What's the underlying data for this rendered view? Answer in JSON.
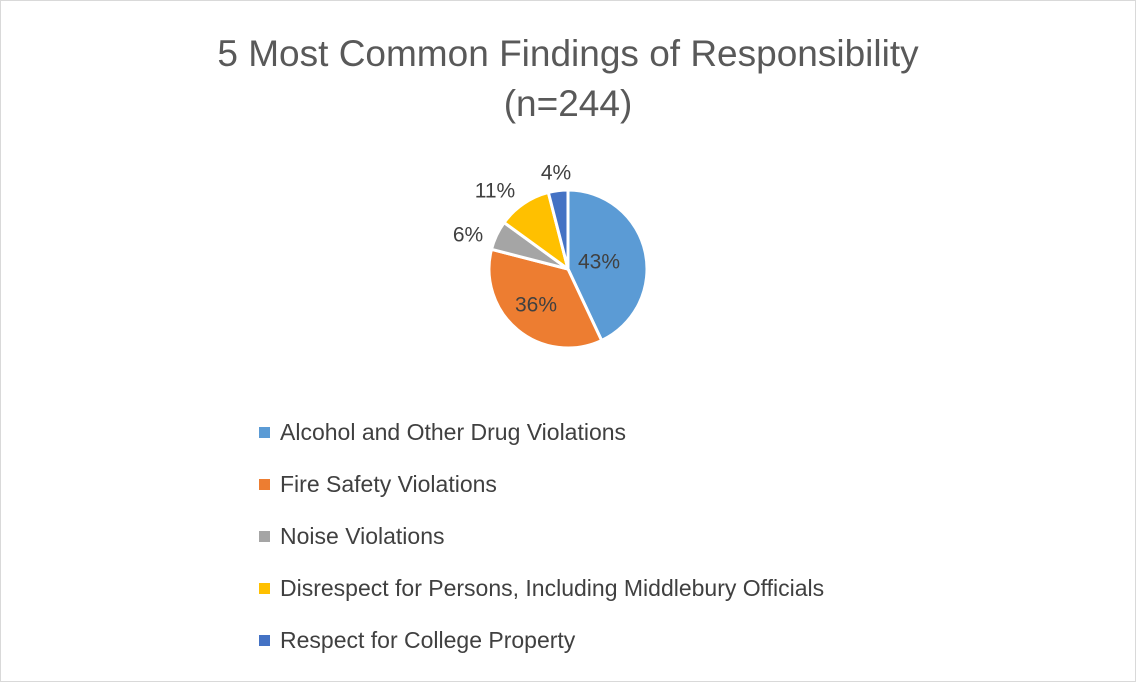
{
  "chart_data": {
    "type": "pie",
    "title_line1": "5 Most Common Findings of Responsibility",
    "title_line2": "(n=244)",
    "slices": [
      {
        "label": "Alcohol and Other Drug Violations",
        "value": 43,
        "data_label": "43%",
        "color": "#5B9BD5"
      },
      {
        "label": "Fire Safety Violations",
        "value": 36,
        "data_label": "36%",
        "color": "#ED7D31"
      },
      {
        "label": "Noise Violations",
        "value": 6,
        "data_label": "6%",
        "color": "#A5A5A5"
      },
      {
        "label": "Disrespect for Persons, Including Middlebury Officials",
        "value": 11,
        "data_label": "11%",
        "color": "#FFC000"
      },
      {
        "label": "Respect for College Property",
        "value": 4,
        "data_label": "4%",
        "color": "#4472C4"
      }
    ],
    "legend_position": "bottom"
  }
}
